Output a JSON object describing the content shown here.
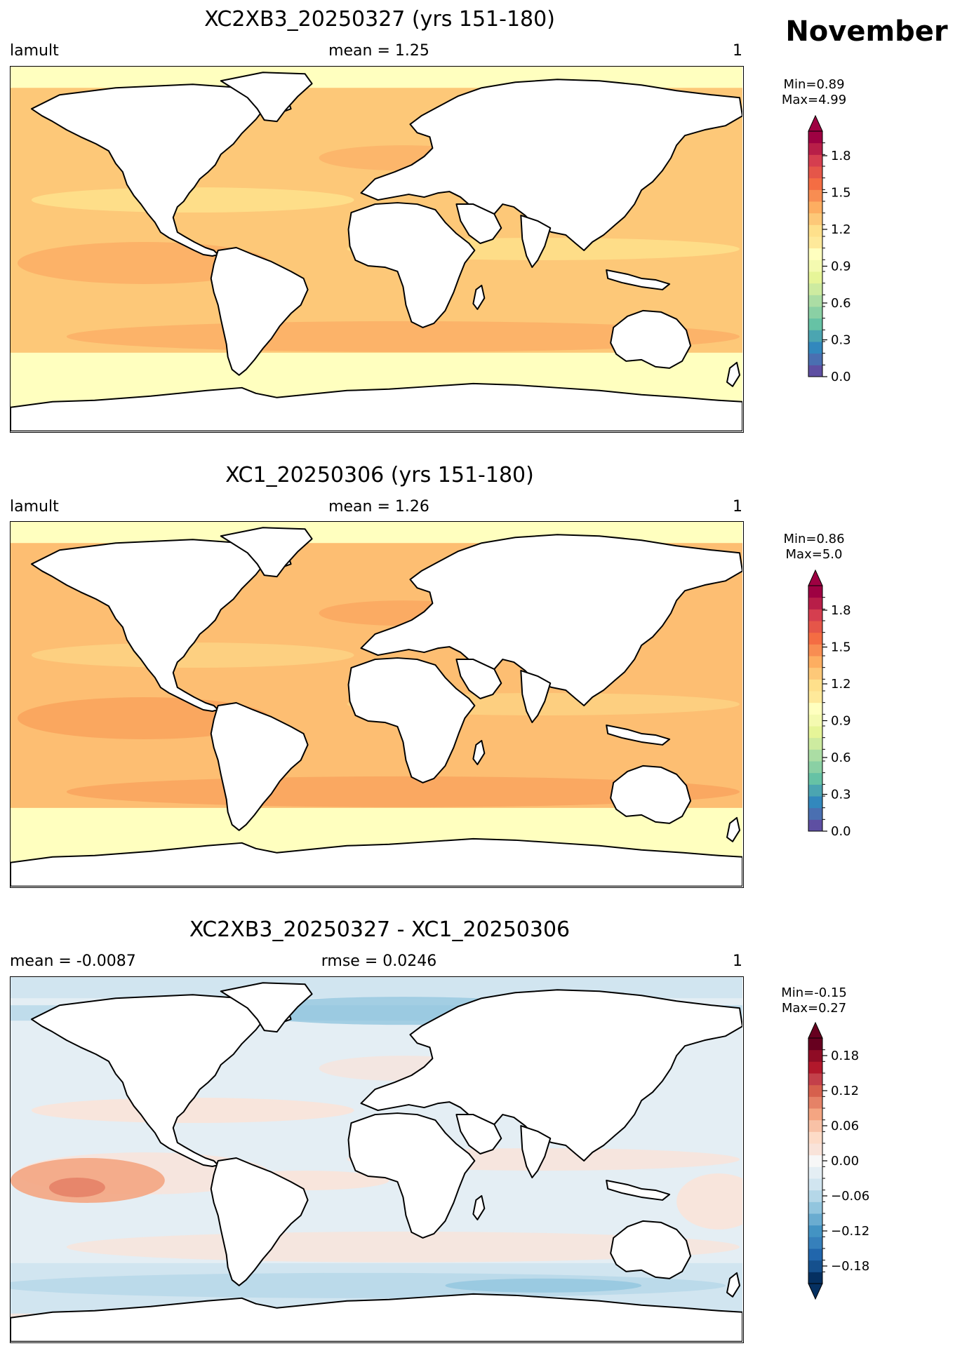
{
  "header": {
    "month": "November"
  },
  "panels": [
    {
      "title": "XC2XB3_20250327 (yrs 151-180)",
      "left_label": "lamult",
      "center_label": "mean = 1.25",
      "right_label": "1",
      "colorbar": {
        "min_label": "Min=0.89",
        "max_label": "Max=4.99",
        "range": [
          0.0,
          2.0
        ],
        "extend": "max",
        "tick_labels": [
          "0.0",
          "0.3",
          "0.6",
          "0.9",
          "1.2",
          "1.5",
          "1.8"
        ],
        "tick_values": [
          0.0,
          0.3,
          0.6,
          0.9,
          1.2,
          1.5,
          1.8
        ],
        "colors": [
          "#5e4fa2",
          "#4a6fb1",
          "#3288bd",
          "#4ba5b1",
          "#66c2a5",
          "#8ad0a4",
          "#abdda4",
          "#cdeba0",
          "#e6f598",
          "#f4fab0",
          "#ffffbf",
          "#fee99a",
          "#fee08b",
          "#fdc878",
          "#fdae61",
          "#f88d52",
          "#f46d43",
          "#e55649",
          "#d53e4f",
          "#b81e48",
          "#9e0142"
        ]
      },
      "palette": {
        "ocean_base": "#fdc878",
        "ocean_high": "#fbae65",
        "polar": "#ffffbf",
        "equatorial": "#fee08b"
      }
    },
    {
      "title": "XC1_20250306 (yrs 151-180)",
      "left_label": "lamult",
      "center_label": "mean = 1.26",
      "right_label": "1",
      "colorbar": {
        "min_label": "Min=0.86",
        "max_label": "Max=5.0",
        "range": [
          0.0,
          2.0
        ],
        "extend": "max",
        "tick_labels": [
          "0.0",
          "0.3",
          "0.6",
          "0.9",
          "1.2",
          "1.5",
          "1.8"
        ],
        "tick_values": [
          0.0,
          0.3,
          0.6,
          0.9,
          1.2,
          1.5,
          1.8
        ],
        "colors": [
          "#5e4fa2",
          "#4a6fb1",
          "#3288bd",
          "#4ba5b1",
          "#66c2a5",
          "#8ad0a4",
          "#abdda4",
          "#cdeba0",
          "#e6f598",
          "#f4fab0",
          "#ffffbf",
          "#fee99a",
          "#fee08b",
          "#fdc878",
          "#fdae61",
          "#f88d52",
          "#f46d43",
          "#e55649",
          "#d53e4f",
          "#b81e48",
          "#9e0142"
        ]
      },
      "palette": {
        "ocean_base": "#fdbe72",
        "ocean_high": "#f9a35c",
        "polar": "#ffffbf",
        "equatorial": "#fdd283"
      }
    },
    {
      "title": "XC2XB3_20250327 - XC1_20250306",
      "left_label": "mean = -0.0087",
      "center_label": "rmse = 0.0246",
      "right_label": "1",
      "colorbar": {
        "min_label": "Min=-0.15",
        "max_label": "Max=0.27",
        "range": [
          -0.21,
          0.21
        ],
        "extend": "both",
        "tick_labels": [
          "−0.18",
          "−0.12",
          "−0.06",
          "0.00",
          "0.06",
          "0.12",
          "0.18"
        ],
        "tick_values": [
          -0.18,
          -0.12,
          -0.06,
          0.0,
          0.06,
          0.12,
          0.18
        ],
        "colors": [
          "#053061",
          "#15508d",
          "#2166ac",
          "#3680bb",
          "#4393c3",
          "#6aacd0",
          "#92c5de",
          "#b5d7e8",
          "#d1e5f0",
          "#e4eef4",
          "#f7f7f7",
          "#f9e3d9",
          "#fddbc7",
          "#f8c1a6",
          "#f4a582",
          "#e58267",
          "#d6604d",
          "#c3404a",
          "#b2182b",
          "#8f0c25",
          "#67001f"
        ]
      },
      "palette": {
        "ocean_base": "#e4eef4",
        "ocean_high": "#f9e3d9",
        "polar": "#d1e5f0",
        "equatorial": "#f9e3d9"
      }
    }
  ]
}
